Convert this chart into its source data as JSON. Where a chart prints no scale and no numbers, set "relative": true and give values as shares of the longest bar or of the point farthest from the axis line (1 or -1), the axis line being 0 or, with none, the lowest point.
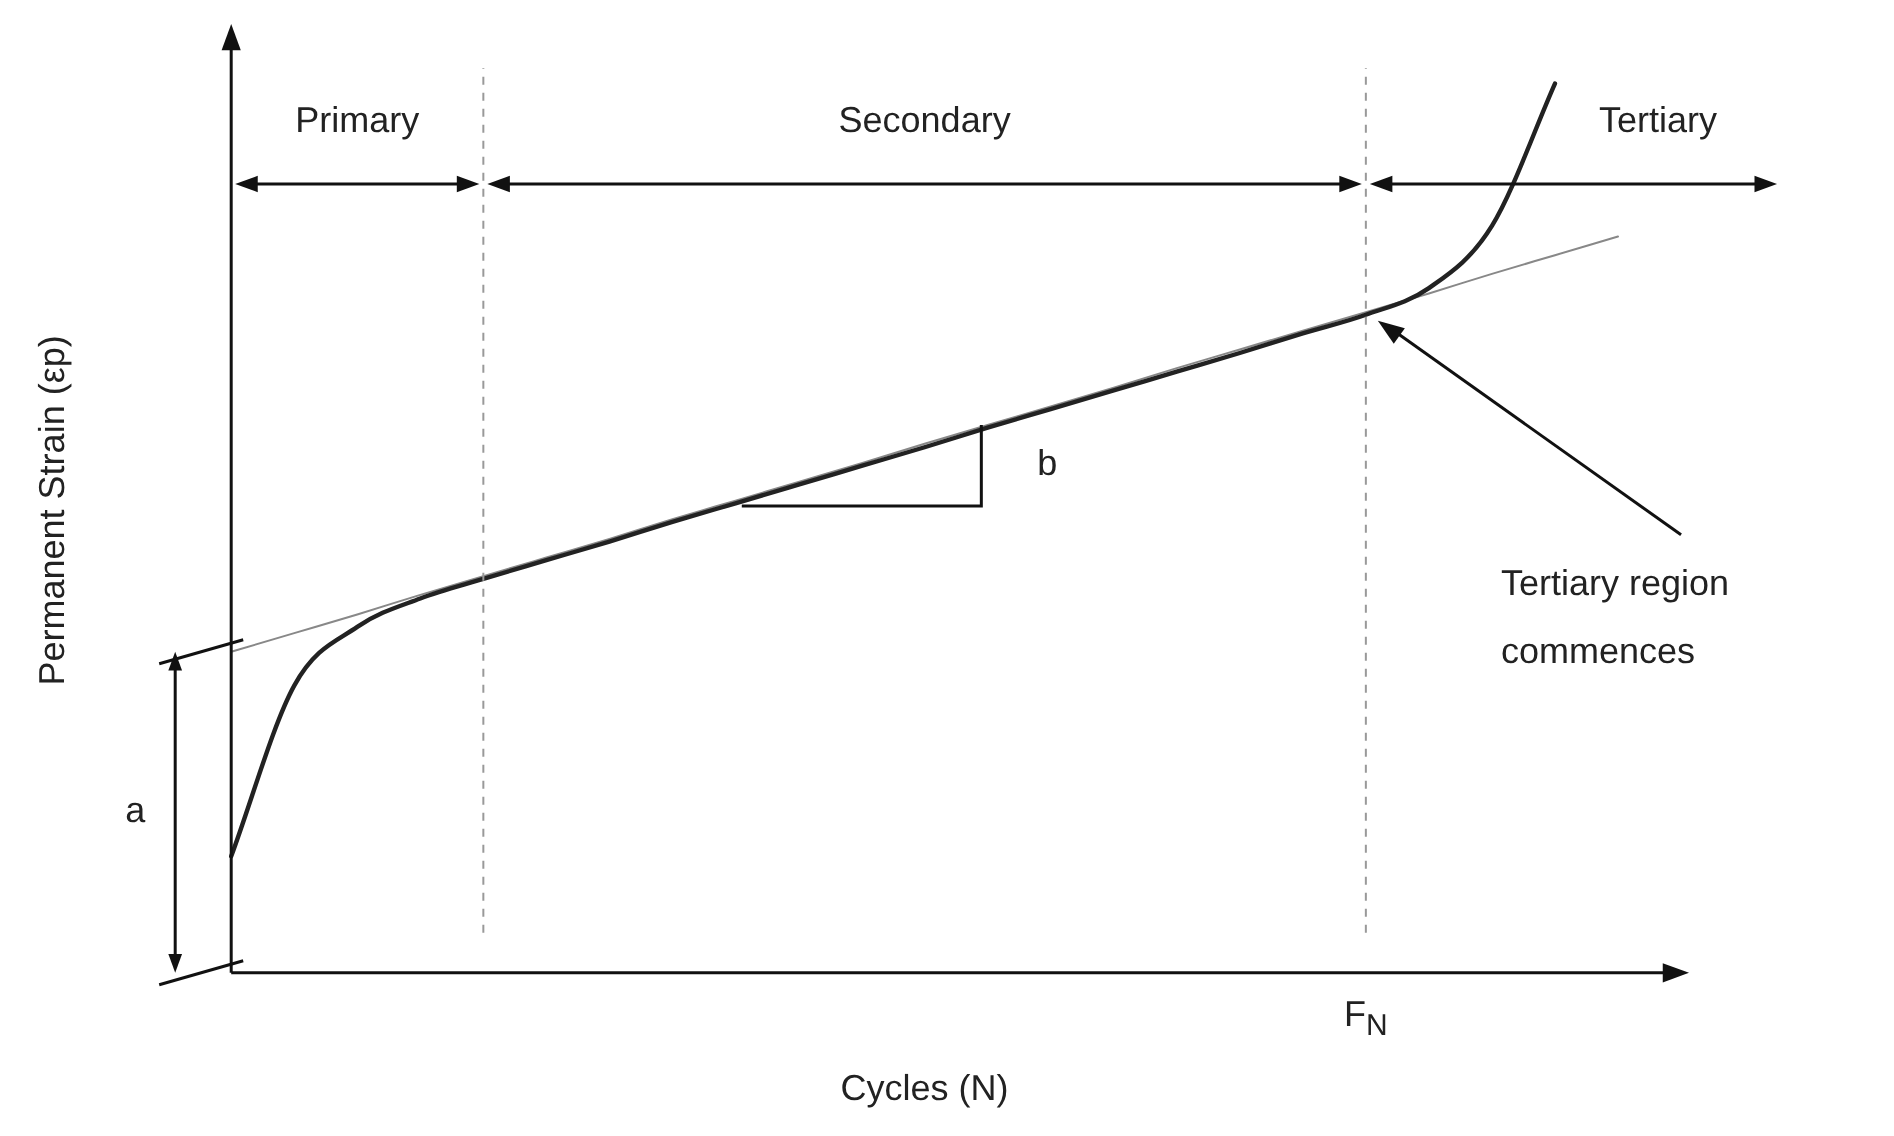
{
  "chart_data": {
    "type": "line",
    "xlabel": "Cycles (N)",
    "ylabel": "Permanent Strain (εp)",
    "relative": true,
    "categories": [
      null,
      null,
      null,
      null,
      null,
      null,
      null,
      null,
      null,
      null,
      null,
      null,
      null,
      null,
      null,
      null,
      null,
      null,
      null,
      null,
      null,
      null,
      null
    ],
    "series": [
      {
        "color": "#222222",
        "values": [
          0.131,
          0.323,
          0.389,
          0.421,
          0.443,
          0.464,
          0.485,
          0.507,
          0.528,
          0.549,
          0.57,
          0.591,
          0.613,
          0.634,
          0.655,
          0.676,
          0.697,
          0.719,
          0.74,
          0.77,
          0.84,
          1,
          null
        ]
      },
      {
        "type": "line",
        "color": "#888888",
        "values": [
          0.361,
          0.382,
          0.403,
          0.425,
          0.446,
          0.467,
          0.488,
          0.51,
          0.531,
          0.552,
          0.573,
          0.595,
          0.616,
          0.637,
          0.658,
          0.68,
          0.701,
          0.722,
          0.743,
          0.764,
          0.786,
          0.807,
          0.828
        ]
      }
    ],
    "annotations": [
      "Primary",
      "Secondary",
      "Tertiary",
      "b",
      "a",
      "Tertiary region commences",
      "F$_{N}$"
    ],
    "legend": false,
    "grid": false,
    "marker": "none"
  }
}
